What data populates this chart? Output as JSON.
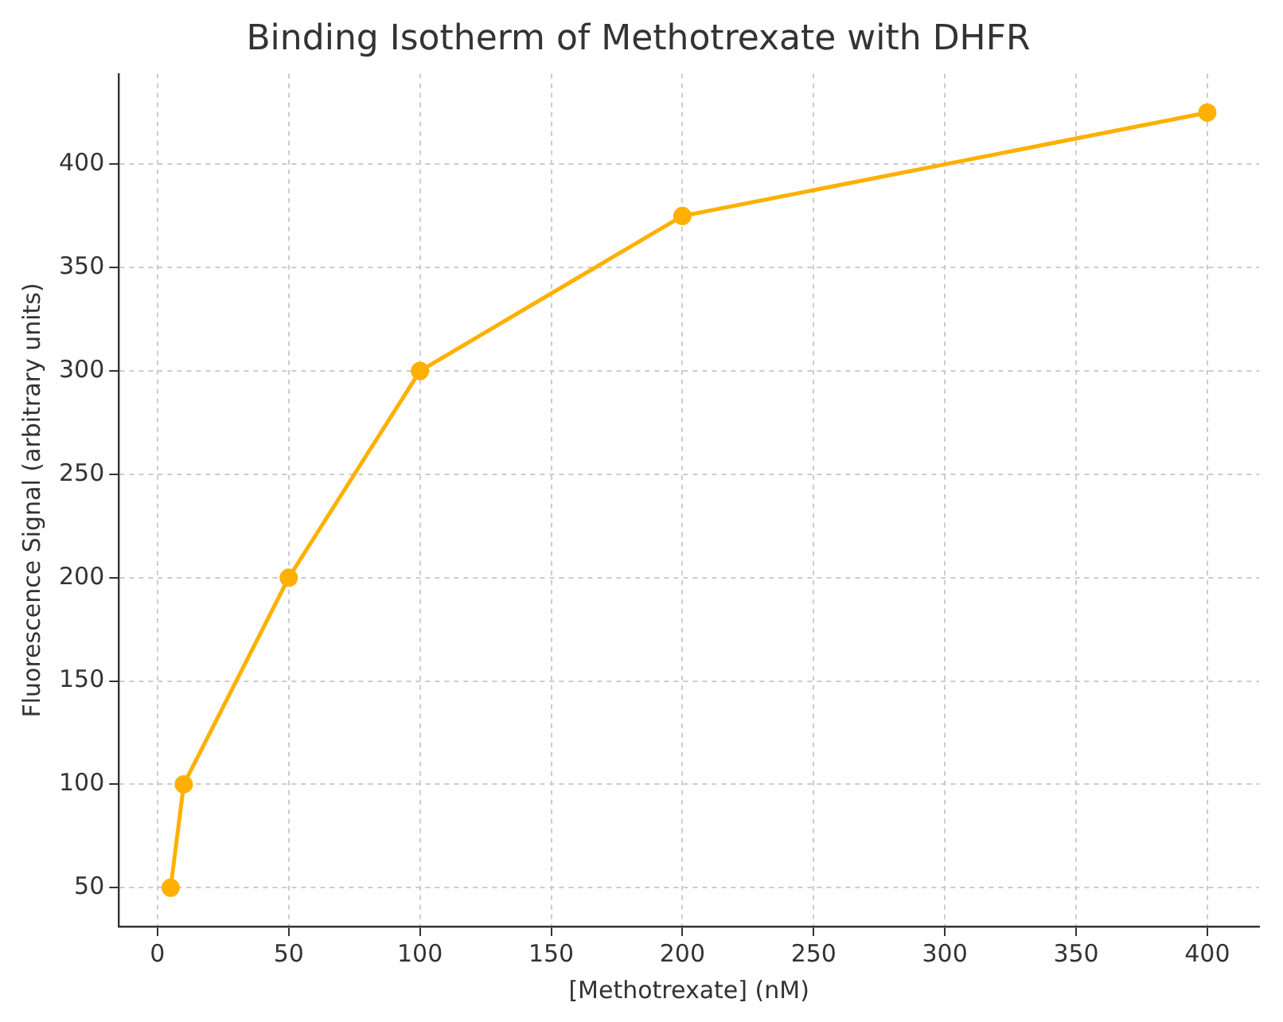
{
  "chart_data": {
    "type": "line",
    "title": "Binding Isotherm of Methotrexate with DHFR",
    "xlabel": "[Methotrexate] (nM)",
    "ylabel": "Fluorescence Signal (arbitrary units)",
    "x": [
      5,
      10,
      50,
      100,
      200,
      400
    ],
    "series": [
      {
        "color": "#ffb000",
        "values": [
          50,
          100,
          200,
          300,
          375,
          425
        ]
      }
    ],
    "xlim": [
      -14.75,
      419.75
    ],
    "xticks": [
      0,
      50,
      100,
      150,
      200,
      250,
      300,
      350,
      400
    ],
    "ylim": [
      31.25,
      443.75
    ],
    "yticks": [
      50,
      100,
      150,
      200,
      250,
      300,
      350,
      400
    ],
    "grid": true,
    "marker": "circle",
    "line_style": "solid",
    "legend": false
  }
}
